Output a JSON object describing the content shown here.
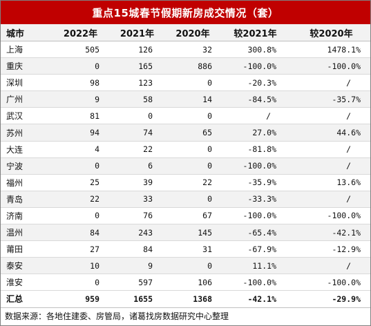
{
  "title": "重点15城春节假期新房成交情况（套）",
  "headers": [
    "城市",
    "2022年",
    "2021年",
    "2020年",
    "较2021年",
    "较2020年"
  ],
  "rows": [
    {
      "city": "上海",
      "y2022": "505",
      "y2021": "126",
      "y2020": "32",
      "vs2021": "300.8%",
      "vs2020": "1478.1%"
    },
    {
      "city": "重庆",
      "y2022": "0",
      "y2021": "165",
      "y2020": "886",
      "vs2021": "-100.0%",
      "vs2020": "-100.0%"
    },
    {
      "city": "深圳",
      "y2022": "98",
      "y2021": "123",
      "y2020": "0",
      "vs2021": "-20.3%",
      "vs2020": "/"
    },
    {
      "city": "广州",
      "y2022": "9",
      "y2021": "58",
      "y2020": "14",
      "vs2021": "-84.5%",
      "vs2020": "-35.7%"
    },
    {
      "city": "武汉",
      "y2022": "81",
      "y2021": "0",
      "y2020": "0",
      "vs2021": "/",
      "vs2020": "/"
    },
    {
      "city": "苏州",
      "y2022": "94",
      "y2021": "74",
      "y2020": "65",
      "vs2021": "27.0%",
      "vs2020": "44.6%"
    },
    {
      "city": "大连",
      "y2022": "4",
      "y2021": "22",
      "y2020": "0",
      "vs2021": "-81.8%",
      "vs2020": "/"
    },
    {
      "city": "宁波",
      "y2022": "0",
      "y2021": "6",
      "y2020": "0",
      "vs2021": "-100.0%",
      "vs2020": "/"
    },
    {
      "city": "福州",
      "y2022": "25",
      "y2021": "39",
      "y2020": "22",
      "vs2021": "-35.9%",
      "vs2020": "13.6%"
    },
    {
      "city": "青岛",
      "y2022": "22",
      "y2021": "33",
      "y2020": "0",
      "vs2021": "-33.3%",
      "vs2020": "/"
    },
    {
      "city": "济南",
      "y2022": "0",
      "y2021": "76",
      "y2020": "67",
      "vs2021": "-100.0%",
      "vs2020": "-100.0%"
    },
    {
      "city": "温州",
      "y2022": "84",
      "y2021": "243",
      "y2020": "145",
      "vs2021": "-65.4%",
      "vs2020": "-42.1%"
    },
    {
      "city": "莆田",
      "y2022": "27",
      "y2021": "84",
      "y2020": "31",
      "vs2021": "-67.9%",
      "vs2020": "-12.9%"
    },
    {
      "city": "泰安",
      "y2022": "10",
      "y2021": "9",
      "y2020": "0",
      "vs2021": "11.1%",
      "vs2020": "/"
    },
    {
      "city": "淮安",
      "y2022": "0",
      "y2021": "597",
      "y2020": "106",
      "vs2021": "-100.0%",
      "vs2020": "-100.0%"
    }
  ],
  "total": {
    "city": "汇总",
    "y2022": "959",
    "y2021": "1655",
    "y2020": "1368",
    "vs2021": "-42.1%",
    "vs2020": "-29.9%"
  },
  "source": "数据来源：各地住建委、房管局，诸葛找房数据研究中心整理"
}
